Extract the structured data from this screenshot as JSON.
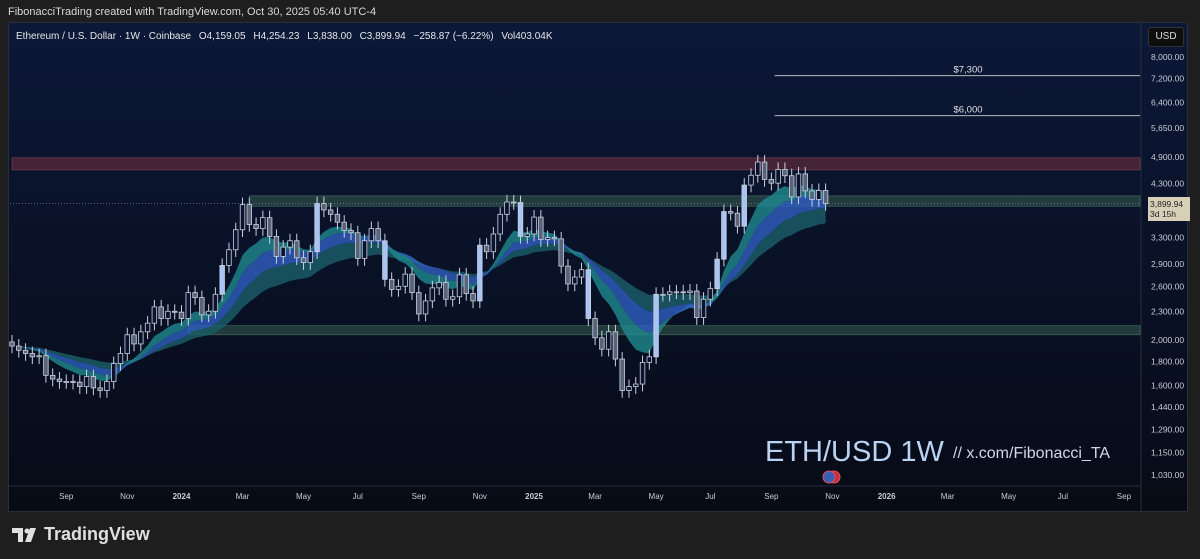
{
  "header": {
    "attribution": "FibonacciTrading created with TradingView.com, Oct 30, 2025 05:40 UTC-4"
  },
  "legend": {
    "symbol": "Ethereum / U.S. Dollar · 1W · Coinbase",
    "open": "O4,159.05",
    "high": "H4,254.23",
    "low": "L3,838.00",
    "close": "C3,899.94",
    "change": "−258.87 (−6.22%)",
    "volume": "Vol403.04K"
  },
  "currency_button": "USD",
  "price_tag": {
    "price": "3,899.94",
    "countdown": "3d 15h"
  },
  "watermark": {
    "title": "ETH/USD 1W",
    "handle": "//  x.com/Fibonacci_TA"
  },
  "footer": {
    "brand": "TradingView"
  },
  "colors": {
    "up_candle": "#0b1330",
    "candle_border": "#c8d0e0",
    "highlight_candle": "#a8c4f5",
    "ribbon_fast": "#1f8a8f",
    "ribbon_slow": "#1b5f6a",
    "ribbon_down": "#2f5fc0",
    "resistance_zone": "#5a2a3c",
    "support_zone": "#2a4a44"
  },
  "chart_data": {
    "type": "candlestick",
    "scale": "log",
    "ylim": [
      1000,
      8400
    ],
    "y_ticks": [
      "8,000.00",
      "7,200.00",
      "6,400.00",
      "5,650.00",
      "4,900.00",
      "4,300.00",
      "3,300.00",
      "2,900.00",
      "2,600.00",
      "2,300.00",
      "2,000.00",
      "1,800.00",
      "1,600.00",
      "1,440.00",
      "1,290.00",
      "1,150.00",
      "1,030.00"
    ],
    "y_tick_values": [
      8000,
      7200,
      6400,
      5650,
      4900,
      4300,
      3300,
      2900,
      2600,
      2300,
      2000,
      1800,
      1600,
      1440,
      1290,
      1150,
      1030
    ],
    "x_ticks": [
      "Sep",
      "Nov",
      "2024",
      "Mar",
      "May",
      "Jul",
      "Sep",
      "Nov",
      "2025",
      "Mar",
      "May",
      "Jul",
      "Sep",
      "Nov",
      "2026",
      "Mar",
      "May",
      "Jul",
      "Sep"
    ],
    "x_tick_weeks": [
      8,
      17,
      25,
      34,
      43,
      51,
      60,
      69,
      77,
      86,
      95,
      103,
      112,
      121,
      129,
      138,
      147,
      155,
      164
    ],
    "first_week": "2023-07-10",
    "closes": [
      1940,
      1900,
      1870,
      1840,
      1850,
      1680,
      1650,
      1630,
      1630,
      1625,
      1590,
      1670,
      1580,
      1560,
      1630,
      1780,
      1870,
      2050,
      1960,
      2080,
      2170,
      2350,
      2220,
      2300,
      2290,
      2220,
      2520,
      2460,
      2260,
      2300,
      2500,
      2880,
      3110,
      3430,
      3880,
      3520,
      3450,
      3640,
      3320,
      3010,
      3150,
      3250,
      2990,
      2920,
      3080,
      3900,
      3780,
      3700,
      3560,
      3420,
      3380,
      2980,
      3250,
      3450,
      3250,
      2690,
      2560,
      2600,
      2760,
      2520,
      2270,
      2420,
      2580,
      2650,
      2440,
      2470,
      2750,
      2510,
      2420,
      3180,
      3080,
      3360,
      3700,
      3930,
      3920,
      3320,
      3360,
      3650,
      3270,
      3300,
      3280,
      2870,
      2630,
      2720,
      2820,
      2220,
      2020,
      1910,
      2080,
      1820,
      1560,
      1590,
      1610,
      1790,
      1840,
      2500,
      2500,
      2530,
      2530,
      2520,
      2540,
      2230,
      2440,
      2570,
      2970,
      3750,
      3720,
      3490,
      4270,
      4480,
      4780,
      4390,
      4310,
      4610,
      4470,
      4030,
      4510,
      4150,
      3980,
      4159,
      3900
    ],
    "zones": [
      {
        "kind": "resistance",
        "from": 4600,
        "to": 4880,
        "start_week": 0
      },
      {
        "kind": "support",
        "from": 3850,
        "to": 4050,
        "start_week": 35
      },
      {
        "kind": "support",
        "from": 2050,
        "to": 2143,
        "start_week": 26
      }
    ],
    "levels": [
      {
        "label": "$7,300",
        "value": 7300,
        "start_week": 111
      },
      {
        "label": "$6,000",
        "value": 6000,
        "start_week": 111
      }
    ],
    "last_price": 3899.94
  }
}
